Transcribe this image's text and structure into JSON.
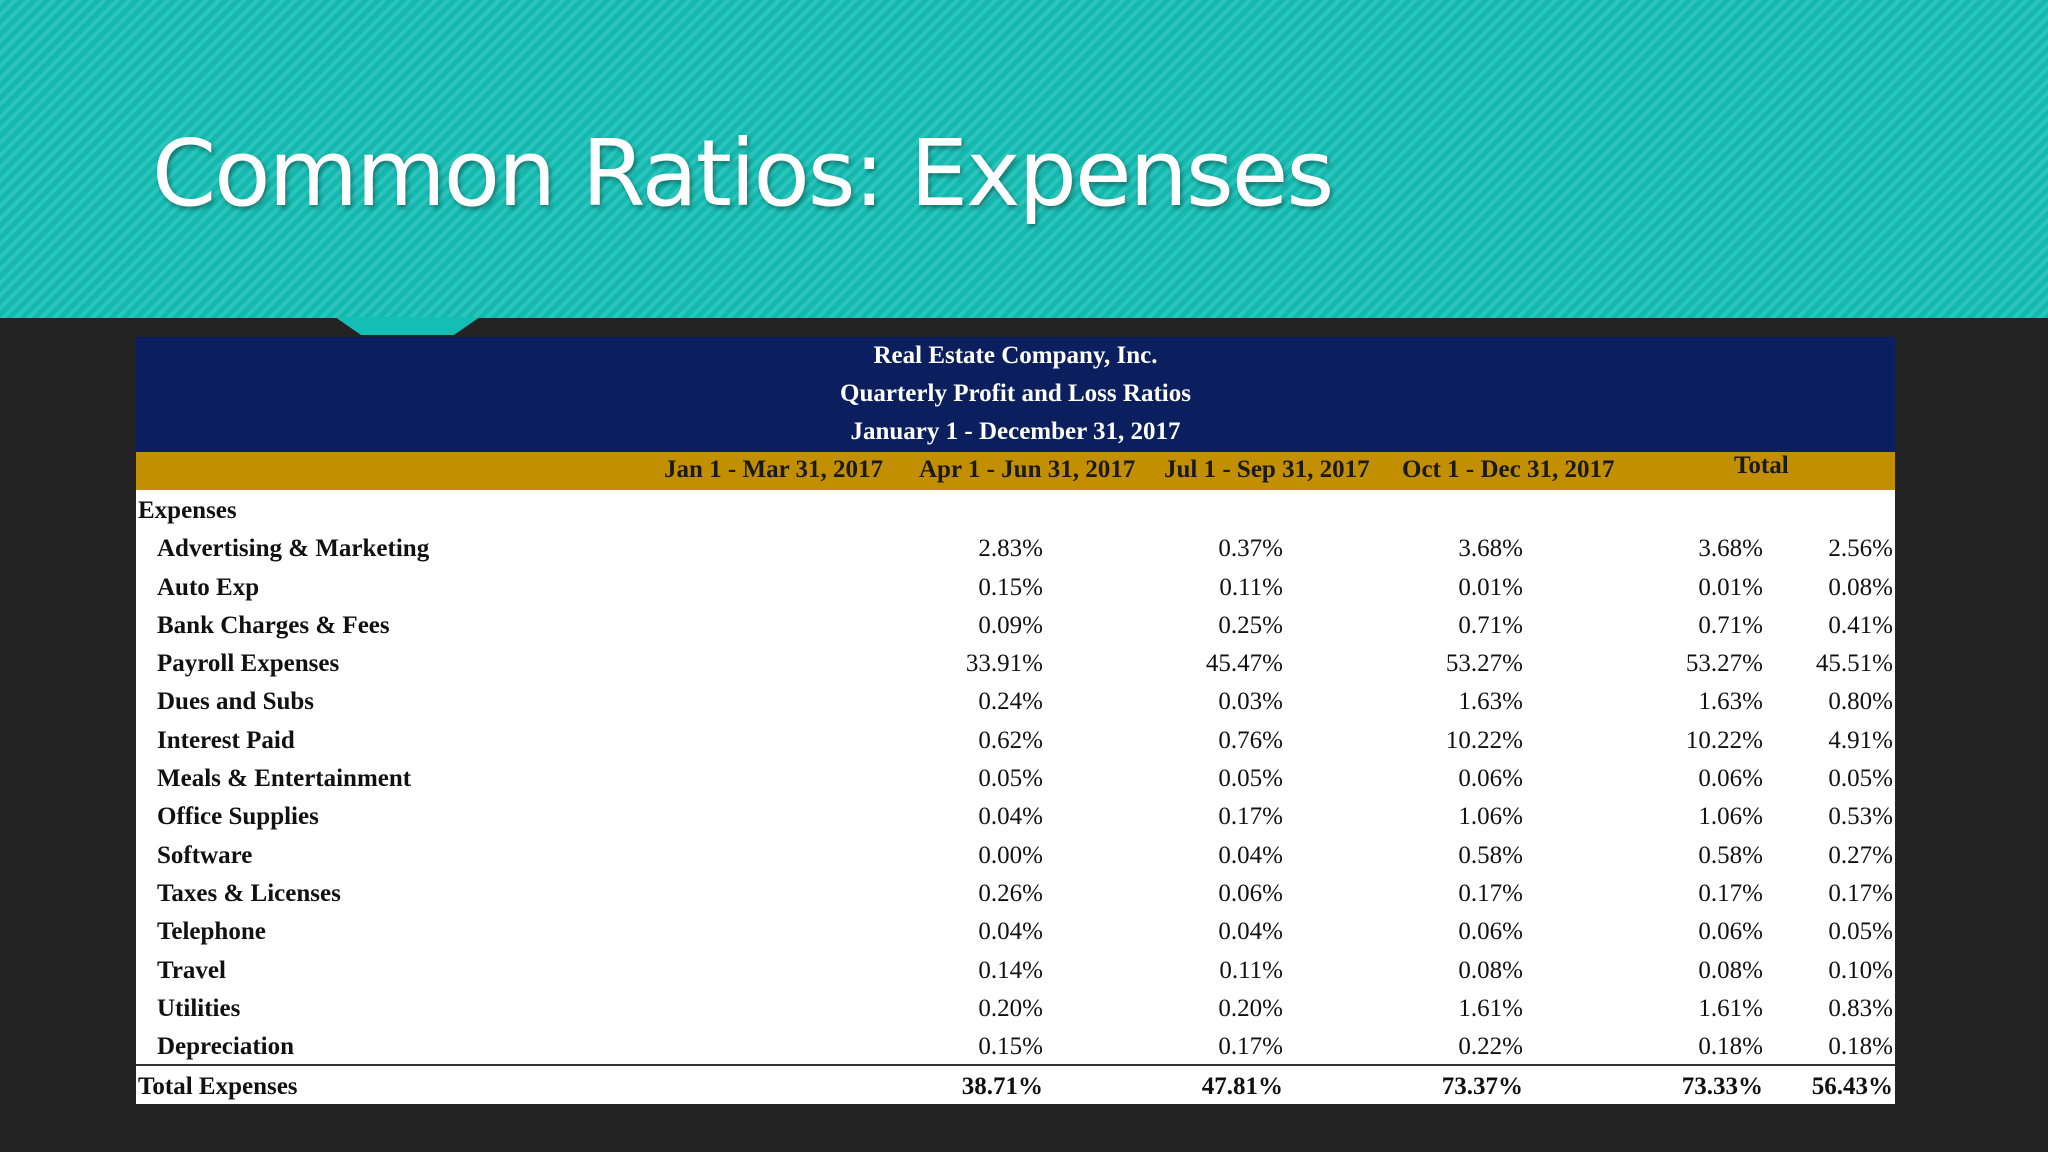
{
  "slide": {
    "title": "Common Ratios: Expenses"
  },
  "report": {
    "company": "Real Estate Company, Inc.",
    "report_name": "Quarterly Profit and Loss Ratios",
    "period": "January 1 - December 31, 2017",
    "columns": [
      "Jan 1 - Mar 31, 2017",
      "Apr 1 - Jun 31, 2017",
      "Jul 1 - Sep 31, 2017",
      "Oct 1 - Dec 31, 2017",
      "Total"
    ],
    "section_label": "Expenses",
    "rows": [
      {
        "label": "Advertising & Marketing",
        "values": [
          "2.83%",
          "0.37%",
          "3.68%",
          "3.68%",
          "2.56%"
        ]
      },
      {
        "label": "Auto Exp",
        "values": [
          "0.15%",
          "0.11%",
          "0.01%",
          "0.01%",
          "0.08%"
        ]
      },
      {
        "label": "Bank Charges & Fees",
        "values": [
          "0.09%",
          "0.25%",
          "0.71%",
          "0.71%",
          "0.41%"
        ]
      },
      {
        "label": "Payroll Expenses",
        "values": [
          "33.91%",
          "45.47%",
          "53.27%",
          "53.27%",
          "45.51%"
        ]
      },
      {
        "label": "Dues and Subs",
        "values": [
          "0.24%",
          "0.03%",
          "1.63%",
          "1.63%",
          "0.80%"
        ]
      },
      {
        "label": "Interest Paid",
        "values": [
          "0.62%",
          "0.76%",
          "10.22%",
          "10.22%",
          "4.91%"
        ]
      },
      {
        "label": "Meals & Entertainment",
        "values": [
          "0.05%",
          "0.05%",
          "0.06%",
          "0.06%",
          "0.05%"
        ]
      },
      {
        "label": "Office Supplies",
        "values": [
          "0.04%",
          "0.17%",
          "1.06%",
          "1.06%",
          "0.53%"
        ]
      },
      {
        "label": "Software",
        "values": [
          "0.00%",
          "0.04%",
          "0.58%",
          "0.58%",
          "0.27%"
        ]
      },
      {
        "label": "Taxes & Licenses",
        "values": [
          "0.26%",
          "0.06%",
          "0.17%",
          "0.17%",
          "0.17%"
        ]
      },
      {
        "label": "Telephone",
        "values": [
          "0.04%",
          "0.04%",
          "0.06%",
          "0.06%",
          "0.05%"
        ]
      },
      {
        "label": "Travel",
        "values": [
          "0.14%",
          "0.11%",
          "0.08%",
          "0.08%",
          "0.10%"
        ]
      },
      {
        "label": "Utilities",
        "values": [
          "0.20%",
          "0.20%",
          "1.61%",
          "1.61%",
          "0.83%"
        ]
      },
      {
        "label": "Depreciation",
        "values": [
          "0.15%",
          "0.17%",
          "0.22%",
          "0.18%",
          "0.18%"
        ]
      }
    ],
    "total": {
      "label": "Total Expenses",
      "values": [
        "38.71%",
        "47.81%",
        "73.37%",
        "73.33%",
        "56.43%"
      ]
    }
  }
}
